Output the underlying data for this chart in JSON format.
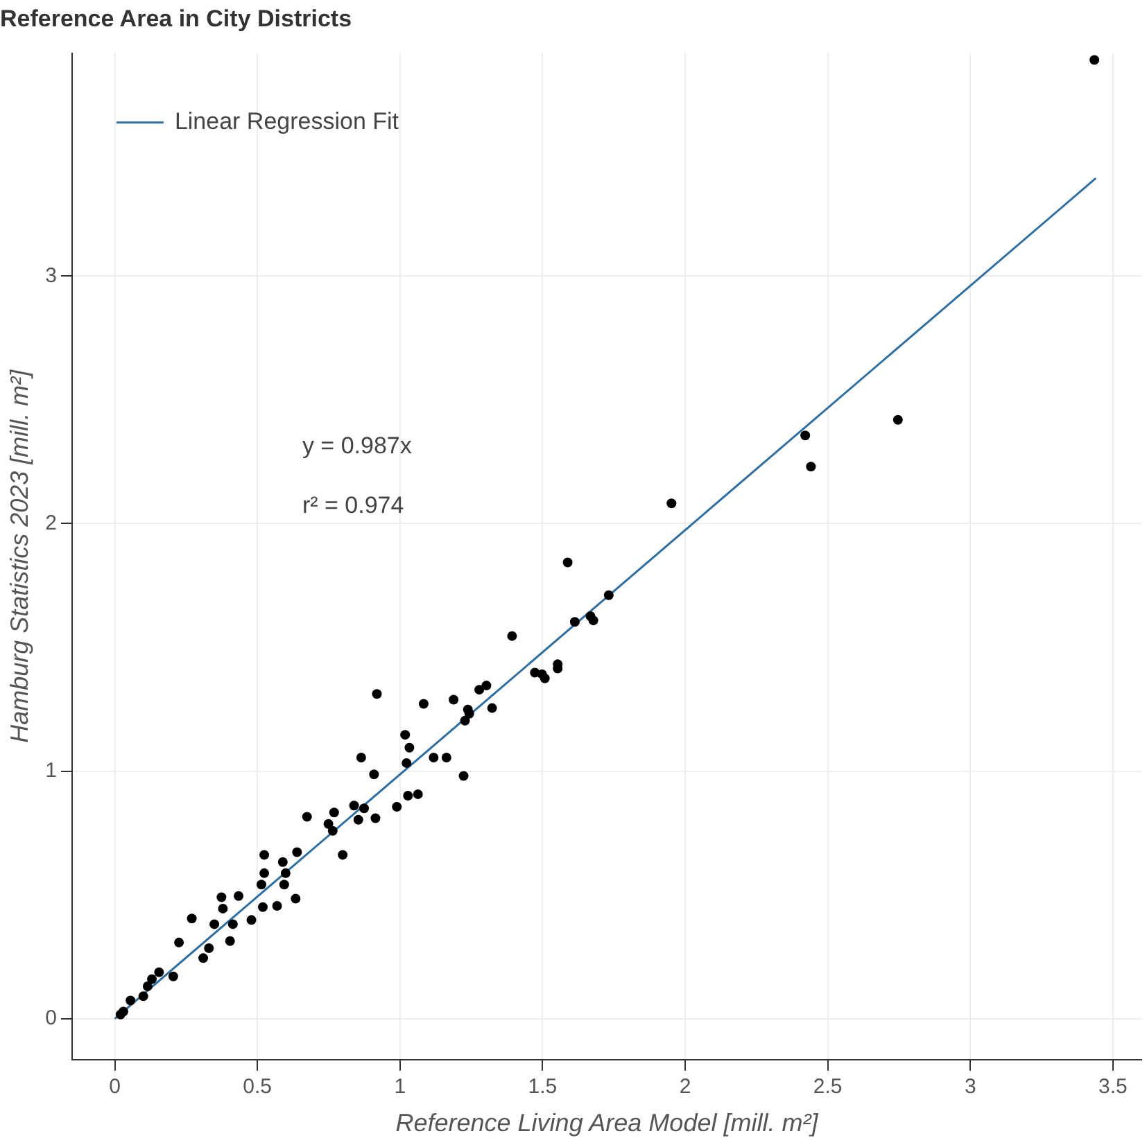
{
  "chart_data": {
    "type": "scatter",
    "title": "Reference Area in City Districts",
    "xlabel": "Reference Living Area Model [mill. m²]",
    "ylabel": "Hamburg Statistics 2023 [mill. m²]",
    "annotations": [
      "y = 0.987x",
      "r² = 0.974"
    ],
    "xlim": [
      -0.15,
      3.6
    ],
    "xticks": [
      0,
      0.5,
      1,
      1.5,
      2,
      2.5,
      3,
      3.5
    ],
    "ylim": [
      -0.165,
      3.9
    ],
    "yticks": [
      0,
      1,
      2,
      3
    ],
    "grid": true,
    "legend": "top left",
    "marker": "circle",
    "series": [
      {
        "color": "#000000",
        "x": [
          3.435,
          2.746,
          2.421,
          2.441,
          1.952,
          1.588,
          1.732,
          1.668,
          1.678,
          1.613,
          1.553,
          1.393,
          1.553,
          1.473,
          1.508,
          1.498,
          1.303,
          1.278,
          1.323,
          1.238,
          1.243,
          1.228,
          1.188,
          1.083,
          0.919,
          1.018,
          1.033,
          1.023,
          1.118,
          1.163,
          1.223,
          0.864,
          0.909,
          1.028,
          1.063,
          0.989,
          0.914,
          0.839,
          0.874,
          0.854,
          0.674,
          0.769,
          0.749,
          0.764,
          0.799,
          0.639,
          0.524,
          0.589,
          0.524,
          0.599,
          0.514,
          0.634,
          0.594,
          0.569,
          0.519,
          0.479,
          0.434,
          0.374,
          0.379,
          0.349,
          0.414,
          0.404,
          0.27,
          0.225,
          0.33,
          0.31,
          0.205,
          0.155,
          0.13,
          0.115,
          0.1,
          0.055,
          0.03,
          0.02
        ],
        "values": [
          3.873,
          2.419,
          2.356,
          2.23,
          2.082,
          1.843,
          1.711,
          1.626,
          1.609,
          1.603,
          1.432,
          1.546,
          1.415,
          1.398,
          1.375,
          1.392,
          1.346,
          1.329,
          1.255,
          1.249,
          1.232,
          1.204,
          1.289,
          1.272,
          1.312,
          1.147,
          1.095,
          1.033,
          1.055,
          1.055,
          0.981,
          1.055,
          0.987,
          0.901,
          0.907,
          0.856,
          0.81,
          0.861,
          0.85,
          0.804,
          0.816,
          0.833,
          0.787,
          0.759,
          0.662,
          0.673,
          0.662,
          0.633,
          0.588,
          0.588,
          0.542,
          0.485,
          0.542,
          0.456,
          0.451,
          0.399,
          0.496,
          0.491,
          0.445,
          0.382,
          0.382,
          0.314,
          0.405,
          0.308,
          0.285,
          0.245,
          0.171,
          0.188,
          0.16,
          0.131,
          0.091,
          0.074,
          0.029,
          0.017
        ]
      },
      {
        "type": "line",
        "name": "Linear Regression Fit",
        "color": "#2e6e9e",
        "marker": "none",
        "x": [
          0,
          3.44
        ],
        "values": [
          0,
          3.395
        ]
      }
    ]
  }
}
